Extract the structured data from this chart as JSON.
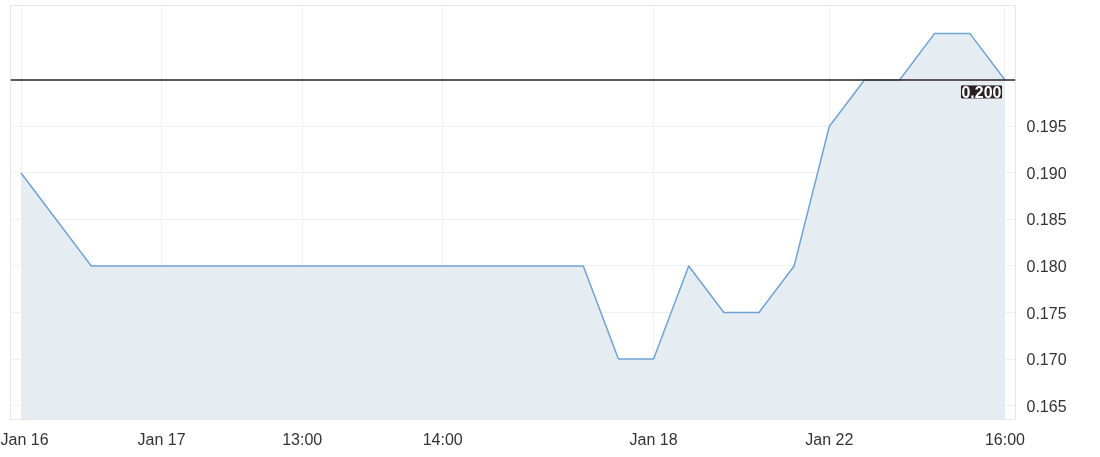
{
  "chart_data": {
    "type": "area",
    "categories": [
      "Jan 16",
      null,
      null,
      null,
      "Jan 17",
      null,
      null,
      null,
      "13:00",
      null,
      null,
      null,
      "14:00",
      null,
      null,
      null,
      null,
      null,
      "Jan 18",
      null,
      null,
      null,
      null,
      "Jan 22",
      null,
      null,
      null,
      null,
      "16:00"
    ],
    "series": [
      {
        "color": "#6fa3d8",
        "values": [
          0.19,
          0.185,
          0.18,
          0.18,
          0.18,
          0.18,
          0.18,
          0.18,
          0.18,
          0.18,
          0.18,
          0.18,
          0.18,
          0.18,
          0.18,
          0.18,
          0.18,
          0.17,
          0.17,
          0.18,
          0.175,
          0.175,
          0.18,
          0.195,
          0.2,
          0.2,
          0.205,
          0.205,
          0.2
        ]
      }
    ],
    "ylim": [
      0.1635,
      0.208
    ],
    "yticks": [
      {
        "value": 0.165,
        "label": "0.165"
      },
      {
        "value": 0.17,
        "label": "0.170"
      },
      {
        "value": 0.175,
        "label": "0.175"
      },
      {
        "value": 0.18,
        "label": "0.180"
      },
      {
        "value": 0.185,
        "label": "0.185"
      },
      {
        "value": 0.19,
        "label": "0.190"
      },
      {
        "value": 0.195,
        "label": "0.195"
      }
    ],
    "ref_lines": [
      {
        "axis": "y",
        "value": 0.2,
        "label": "0.200",
        "color": "#2b2023"
      }
    ],
    "grid": true
  }
}
